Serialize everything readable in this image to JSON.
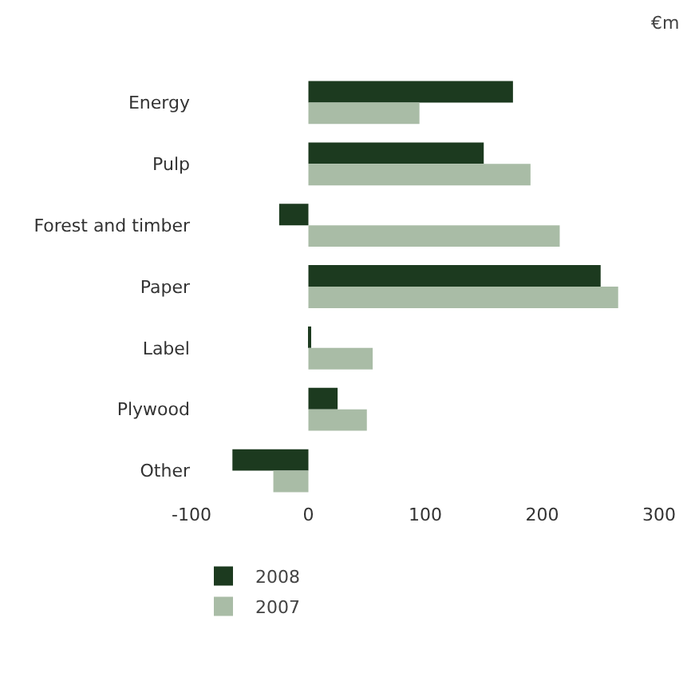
{
  "chart_data": {
    "type": "bar",
    "orientation": "horizontal",
    "annotations": [
      "€m"
    ],
    "categories": [
      "Energy",
      "Pulp",
      "Forest and timber",
      "Paper",
      "Label",
      "Plywood",
      "Other"
    ],
    "series": [
      {
        "name": "2008",
        "color": "#1c3a1f",
        "values": [
          175,
          150,
          -25,
          250,
          2,
          25,
          -65
        ]
      },
      {
        "name": "2007",
        "color": "#a9bca6",
        "values": [
          95,
          190,
          215,
          265,
          55,
          50,
          -30
        ]
      }
    ],
    "xlim": [
      -100,
      300
    ],
    "xticks": [
      -100,
      0,
      100,
      200,
      300
    ],
    "grid": false,
    "legend": "bottom left"
  }
}
